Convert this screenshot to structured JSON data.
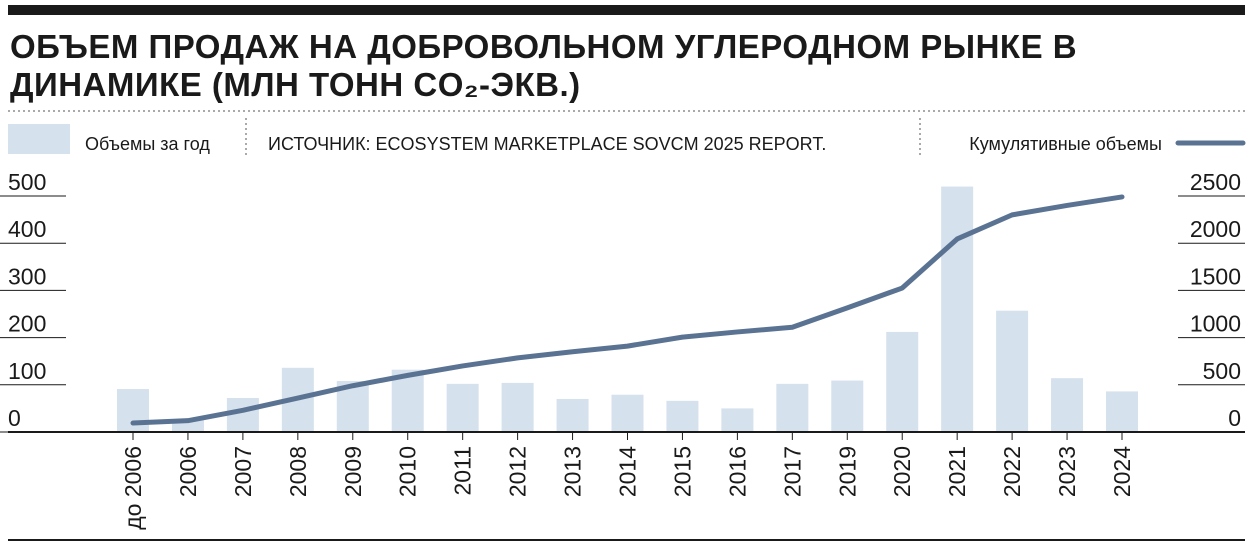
{
  "chart_data": {
    "type": "bar",
    "title": "ОБЪЕМ ПРОДАЖ НА ДОБРОВОЛЬНОМ УГЛЕРОДНОМ РЫНКЕ В ДИНАМИКЕ (МЛН ТОНН CO₂-ЭКВ.)",
    "source": "ИСТОЧНИК: ECOSYSTEM MARKETPLACE SOVCM 2025 REPORT.",
    "categories": [
      "до 2006",
      "2006",
      "2007",
      "2008",
      "2009",
      "2010",
      "2011",
      "2012",
      "2013",
      "2014",
      "2015",
      "2016",
      "2017",
      "2019",
      "2020",
      "2021",
      "2022",
      "2023",
      "2024"
    ],
    "series": [
      {
        "name": "Объемы за год",
        "type": "bar",
        "color": "#d5e1ed",
        "values": [
          91,
          25,
          72,
          136,
          108,
          132,
          102,
          104,
          70,
          79,
          66,
          50,
          102,
          109,
          212,
          520,
          257,
          114,
          86
        ]
      },
      {
        "name": "Кумулятивные объемы",
        "type": "line",
        "axis": "y2",
        "color": "#5b7392",
        "values": [
          95,
          120,
          230,
          360,
          490,
          600,
          700,
          785,
          850,
          910,
          1005,
          1060,
          1110,
          1315,
          1525,
          2045,
          2300,
          2400,
          2490
        ]
      }
    ],
    "ylim": [
      0,
      500
    ],
    "yticks": [
      0,
      100,
      200,
      300,
      400,
      500
    ],
    "y2lim": [
      0,
      2500
    ],
    "y2ticks": [
      0,
      500,
      1000,
      1500,
      2000,
      2500
    ]
  }
}
